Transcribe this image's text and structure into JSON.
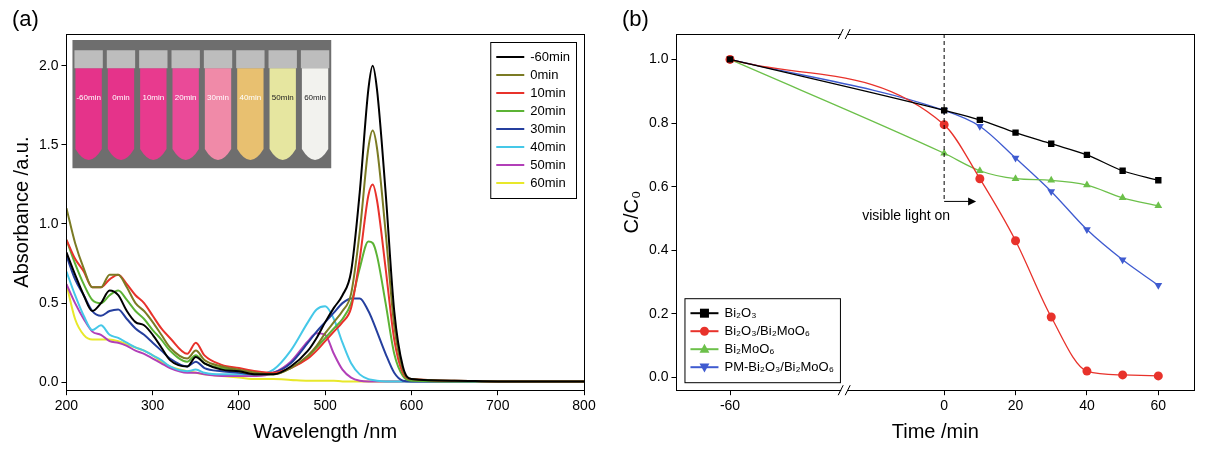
{
  "chart_data": [
    {
      "type": "line",
      "panel_label": "(a)",
      "x_label": "Wavelength /nm",
      "y_label": "Absorbance /a.u.",
      "x": [
        200,
        210,
        220,
        230,
        240,
        250,
        260,
        270,
        280,
        290,
        300,
        310,
        320,
        340,
        350,
        360,
        380,
        400,
        420,
        440,
        460,
        480,
        490,
        500,
        510,
        520,
        530,
        540,
        550,
        555,
        560,
        570,
        580,
        590,
        600,
        650,
        700,
        800
      ],
      "series": [
        {
          "name": "-60min",
          "color": "#000000",
          "values": [
            0.82,
            0.68,
            0.55,
            0.45,
            0.5,
            0.58,
            0.55,
            0.45,
            0.38,
            0.36,
            0.3,
            0.22,
            0.14,
            0.1,
            0.16,
            0.12,
            0.08,
            0.07,
            0.05,
            0.05,
            0.1,
            0.2,
            0.28,
            0.38,
            0.47,
            0.55,
            0.7,
            1.2,
            1.85,
            2.0,
            1.85,
            1.2,
            0.45,
            0.1,
            0.02,
            0.01,
            0.005,
            0.005
          ]
        },
        {
          "name": "0min",
          "color": "#7b7b24",
          "values": [
            1.1,
            0.88,
            0.72,
            0.6,
            0.6,
            0.68,
            0.68,
            0.6,
            0.5,
            0.45,
            0.38,
            0.3,
            0.22,
            0.15,
            0.2,
            0.14,
            0.1,
            0.08,
            0.06,
            0.05,
            0.09,
            0.17,
            0.23,
            0.31,
            0.38,
            0.45,
            0.56,
            0.95,
            1.48,
            1.59,
            1.48,
            0.95,
            0.36,
            0.08,
            0.02,
            0.01,
            0.005,
            0.005
          ]
        },
        {
          "name": "10min",
          "color": "#e8322b",
          "values": [
            0.9,
            0.78,
            0.7,
            0.6,
            0.6,
            0.65,
            0.68,
            0.62,
            0.55,
            0.5,
            0.42,
            0.34,
            0.28,
            0.18,
            0.25,
            0.17,
            0.11,
            0.09,
            0.07,
            0.06,
            0.09,
            0.15,
            0.2,
            0.26,
            0.32,
            0.38,
            0.47,
            0.78,
            1.18,
            1.25,
            1.15,
            0.72,
            0.27,
            0.06,
            0.02,
            0.01,
            0.005,
            0.005
          ]
        },
        {
          "name": "20min",
          "color": "#5cb335",
          "values": [
            0.9,
            0.75,
            0.62,
            0.52,
            0.5,
            0.55,
            0.58,
            0.52,
            0.45,
            0.4,
            0.33,
            0.27,
            0.2,
            0.13,
            0.17,
            0.12,
            0.09,
            0.07,
            0.05,
            0.05,
            0.09,
            0.16,
            0.22,
            0.28,
            0.34,
            0.4,
            0.5,
            0.72,
            0.89,
            0.88,
            0.8,
            0.5,
            0.18,
            0.04,
            0.01,
            0.005,
            0.005,
            0.005
          ]
        },
        {
          "name": "30min",
          "color": "#253f9e",
          "values": [
            0.8,
            0.65,
            0.55,
            0.45,
            0.42,
            0.45,
            0.46,
            0.4,
            0.34,
            0.3,
            0.25,
            0.2,
            0.15,
            0.1,
            0.13,
            0.09,
            0.07,
            0.06,
            0.05,
            0.06,
            0.12,
            0.25,
            0.32,
            0.38,
            0.44,
            0.5,
            0.53,
            0.53,
            0.45,
            0.39,
            0.32,
            0.18,
            0.06,
            0.01,
            0.005,
            0.005,
            0.005,
            0.005
          ]
        },
        {
          "name": "40min",
          "color": "#45c8e8",
          "values": [
            0.7,
            0.55,
            0.42,
            0.33,
            0.36,
            0.3,
            0.28,
            0.25,
            0.22,
            0.2,
            0.17,
            0.14,
            0.1,
            0.07,
            0.08,
            0.06,
            0.05,
            0.05,
            0.05,
            0.08,
            0.2,
            0.38,
            0.46,
            0.48,
            0.4,
            0.25,
            0.12,
            0.05,
            0.02,
            0.015,
            0.01,
            0.005,
            0.005,
            0.005,
            0.005,
            0.005,
            0.005,
            0.005
          ]
        },
        {
          "name": "50min",
          "color": "#b23fb8",
          "values": [
            0.62,
            0.5,
            0.4,
            0.32,
            0.3,
            0.26,
            0.25,
            0.23,
            0.2,
            0.18,
            0.15,
            0.12,
            0.09,
            0.06,
            0.06,
            0.05,
            0.04,
            0.04,
            0.04,
            0.06,
            0.13,
            0.26,
            0.31,
            0.3,
            0.18,
            0.08,
            0.03,
            0.01,
            0.005,
            0.005,
            0.005,
            0.005,
            0.005,
            0.005,
            0.005,
            0.005,
            0.005,
            0.005
          ]
        },
        {
          "name": "60min",
          "color": "#e8e82a",
          "values": [
            0.62,
            0.4,
            0.3,
            0.27,
            0.27,
            0.27,
            0.26,
            0.24,
            0.22,
            0.2,
            0.17,
            0.13,
            0.1,
            0.07,
            0.06,
            0.05,
            0.04,
            0.03,
            0.02,
            0.02,
            0.015,
            0.01,
            0.01,
            0.01,
            0.01,
            0.005,
            0.005,
            0.005,
            0.005,
            0.005,
            0.005,
            0.005,
            0.005,
            0.005,
            0.005,
            0.005,
            0.005,
            0.005
          ]
        }
      ],
      "xlim": [
        200,
        800
      ],
      "xticks": [
        200,
        300,
        400,
        500,
        600,
        700,
        800
      ],
      "ylim": [
        -0.05,
        2.2
      ],
      "yticks": [
        {
          "value": 0,
          "label": "0.0"
        },
        {
          "value": 0.5,
          "label": "0.5"
        },
        {
          "value": 1,
          "label": "1.0"
        },
        {
          "value": 1.5,
          "label": "1.5"
        },
        {
          "value": 2,
          "label": "2.0"
        }
      ],
      "grid": false,
      "legend": "upper right",
      "inset": {
        "labels": [
          "-60min",
          "0min",
          "10min",
          "20min",
          "30min",
          "40min",
          "50min",
          "60min"
        ],
        "colors": [
          "#e5338a",
          "#e5338a",
          "#e83a8e",
          "#ea4a98",
          "#f08aa8",
          "#e8c070",
          "#e6e6a0",
          "#f2f2ee"
        ]
      }
    },
    {
      "type": "line",
      "panel_label": "(b)",
      "x_label": "Time /min",
      "y_label": "C/C₀",
      "x": [
        -60,
        0,
        10,
        20,
        30,
        40,
        50,
        60
      ],
      "series": [
        {
          "name": "Bi₂O₃",
          "color": "#000000",
          "marker": "square",
          "values": [
            1.0,
            0.84,
            0.81,
            0.77,
            0.735,
            0.7,
            0.65,
            0.62
          ]
        },
        {
          "name": "Bi₂O₃/Bi₂MoO₆",
          "color": "#e8322b",
          "marker": "circle",
          "values": [
            1.0,
            0.795,
            0.625,
            0.43,
            0.19,
            0.02,
            0.008,
            0.005
          ]
        },
        {
          "name": "Bi₂MoO₆",
          "color": "#6cc04a",
          "marker": "triangle-up",
          "values": [
            1.0,
            0.705,
            0.65,
            0.625,
            0.62,
            0.605,
            0.565,
            0.54
          ]
        },
        {
          "name": "PM-Bi₂O₃/Bi₂MoO₆",
          "color": "#3f5bd0",
          "marker": "triangle-down",
          "values": [
            1.0,
            0.84,
            0.79,
            0.69,
            0.585,
            0.465,
            0.37,
            0.29
          ]
        }
      ],
      "xlim": [
        -75,
        70
      ],
      "xticks": [
        -60,
        0,
        20,
        40,
        60
      ],
      "x_break": -28,
      "ylim": [
        -0.04,
        1.08
      ],
      "yticks": [
        {
          "value": 0,
          "label": "0.0"
        },
        {
          "value": 0.2,
          "label": "0.2"
        },
        {
          "value": 0.4,
          "label": "0.4"
        },
        {
          "value": 0.6,
          "label": "0.6"
        },
        {
          "value": 0.8,
          "label": "0.8"
        },
        {
          "value": 1,
          "label": "1.0"
        }
      ],
      "grid": false,
      "legend": "lower left",
      "annotations": [
        {
          "text": "visible light on",
          "x": 0
        }
      ]
    }
  ]
}
